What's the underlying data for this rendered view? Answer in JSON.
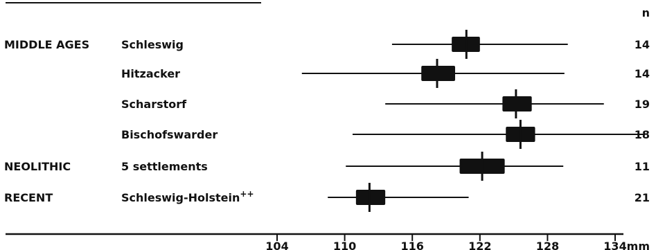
{
  "chart_data": {
    "type": "boxplot-range",
    "unit_label": "mm",
    "count_header": "n",
    "xlim": [
      98,
      137
    ],
    "x_ticks": [
      104,
      110,
      116,
      122,
      128,
      134
    ],
    "groups": [
      {
        "period": "MIDDLE AGES",
        "site": "Schleswig",
        "n": "14",
        "min": 114.2,
        "max": 129.8,
        "box_low": 119.5,
        "box_high": 122.0,
        "mean": 120.8
      },
      {
        "period": "",
        "site": "Hitzacker",
        "n": "14",
        "min": 106.2,
        "max": 129.5,
        "box_low": 116.8,
        "box_high": 119.8,
        "mean": 118.2
      },
      {
        "period": "",
        "site": "Scharstorf",
        "n": "19",
        "min": 113.6,
        "max": 133.0,
        "box_low": 124.0,
        "box_high": 126.6,
        "mean": 125.2
      },
      {
        "period": "",
        "site": "Bischofswarder",
        "n": "18",
        "min": 110.7,
        "max": 136.6,
        "box_low": 124.3,
        "box_high": 126.9,
        "mean": 125.6
      },
      {
        "period": "NEOLITHIC",
        "site": "5 settlements",
        "n": "11",
        "min": 110.1,
        "max": 129.4,
        "box_low": 120.2,
        "box_high": 124.2,
        "mean": 122.2
      },
      {
        "period": "RECENT",
        "site": "Schleswig-Holstein",
        "site_suffix": "++",
        "n": "21",
        "min": 108.5,
        "max": 121.0,
        "box_low": 111.0,
        "box_high": 113.6,
        "mean": 112.2
      }
    ]
  }
}
